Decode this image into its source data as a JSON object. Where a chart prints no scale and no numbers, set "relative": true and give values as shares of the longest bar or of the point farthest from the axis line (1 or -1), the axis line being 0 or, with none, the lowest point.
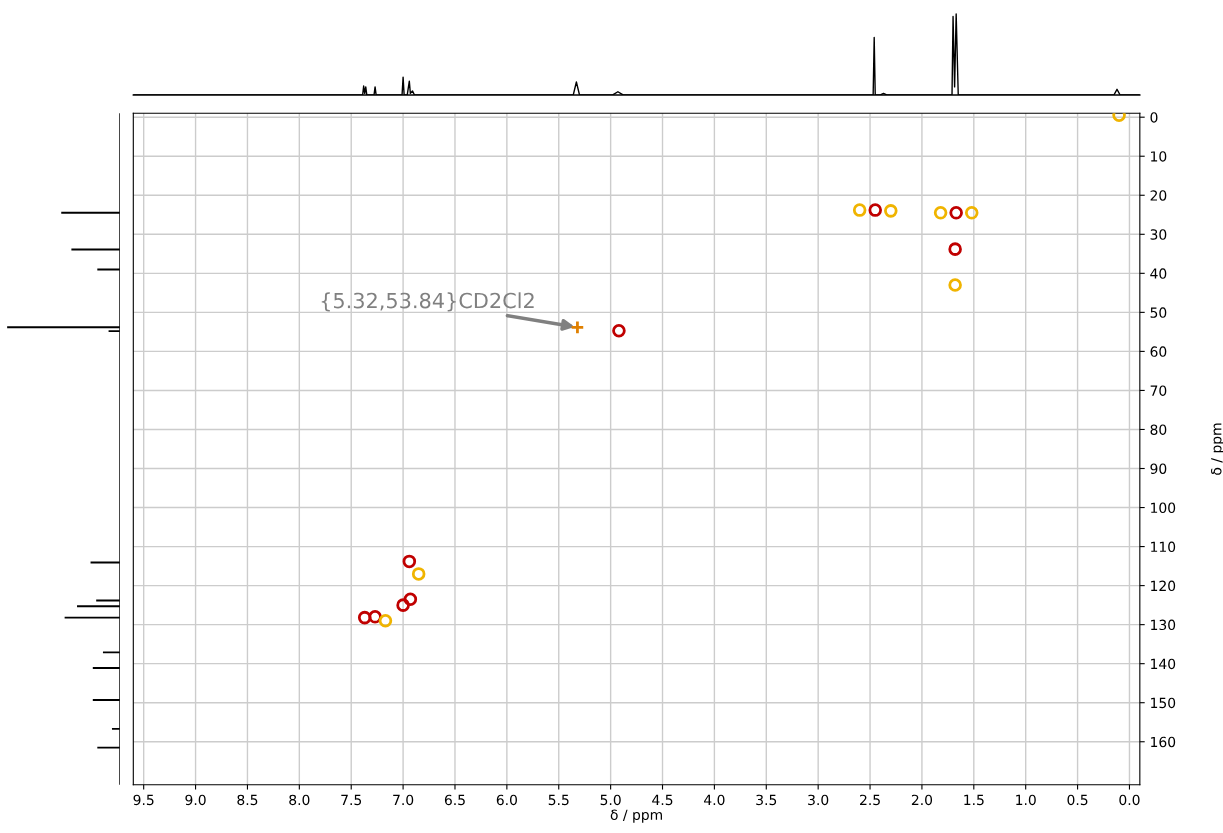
{
  "chart_data": [
    {
      "type": "line",
      "relative": true,
      "tick_labels": false,
      "xlim": [
        9.6,
        -0.1
      ],
      "series": [
        {
          "color": "#000000",
          "x": [
            9.6,
            7.42,
            7.39,
            7.38,
            7.37,
            7.36,
            7.35,
            7.3,
            7.28,
            7.27,
            7.26,
            7.05,
            7.01,
            7.0,
            6.99,
            6.96,
            6.94,
            6.93,
            6.91,
            6.89,
            5.36,
            5.33,
            5.3,
            4.98,
            4.93,
            4.88,
            2.5,
            2.47,
            2.46,
            2.45,
            2.4,
            2.37,
            2.34,
            1.74,
            1.71,
            1.7,
            1.685,
            1.67,
            1.65,
            1.62,
            0.15,
            0.12,
            0.09,
            -0.1
          ],
          "values": [
            0,
            0,
            0,
            0.11,
            0.02,
            0.1,
            0,
            0,
            0,
            0.1,
            0,
            0,
            0,
            0.22,
            0,
            0,
            0.17,
            0.02,
            0.05,
            0,
            0,
            0.16,
            0,
            0,
            0.04,
            0,
            0,
            0,
            0.71,
            0,
            0,
            0.02,
            0,
            0,
            0,
            0.97,
            0.1,
            1.0,
            0,
            0,
            0,
            0.07,
            0,
            0
          ]
        }
      ]
    },
    {
      "type": "scatter",
      "xlabel": "δ / ppm",
      "ylabel": "δ / ppm",
      "xlim": [
        9.6,
        -0.1
      ],
      "ylim": [
        171,
        -1
      ],
      "grid": true,
      "xticks": [
        {
          "value": 9.5,
          "label": "9.5"
        },
        {
          "value": 9,
          "label": "9.0"
        },
        {
          "value": 8.5,
          "label": "8.5"
        },
        {
          "value": 8,
          "label": "8.0"
        },
        {
          "value": 7.5,
          "label": "7.5"
        },
        {
          "value": 7,
          "label": "7.0"
        },
        {
          "value": 6.5,
          "label": "6.5"
        },
        {
          "value": 6,
          "label": "6.0"
        },
        {
          "value": 5.5,
          "label": "5.5"
        },
        {
          "value": 5,
          "label": "5.0"
        },
        {
          "value": 4.5,
          "label": "4.5"
        },
        {
          "value": 4,
          "label": "4.0"
        },
        {
          "value": 3.5,
          "label": "3.5"
        },
        {
          "value": 3,
          "label": "3.0"
        },
        {
          "value": 2.5,
          "label": "2.5"
        },
        {
          "value": 2,
          "label": "2.0"
        },
        {
          "value": 1.5,
          "label": "1.5"
        },
        {
          "value": 1,
          "label": "1.0"
        },
        {
          "value": 0.5,
          "label": "0.5"
        },
        {
          "value": 0,
          "label": "0.0"
        }
      ],
      "yticks": [
        0,
        10,
        20,
        30,
        40,
        50,
        60,
        70,
        80,
        90,
        100,
        110,
        120,
        130,
        140,
        150,
        160
      ],
      "series": [
        {
          "color": "#c00000",
          "marker": "circle",
          "x": [
            7.37,
            7.27,
            7.0,
            6.94,
            6.93,
            4.92,
            2.45,
            1.67,
            1.68
          ],
          "values": [
            128.2,
            128.0,
            125.0,
            113.8,
            123.5,
            54.7,
            23.8,
            24.5,
            33.8
          ]
        },
        {
          "color": "#f0b400",
          "marker": "circle",
          "x": [
            7.17,
            6.85,
            2.6,
            2.3,
            1.82,
            1.52,
            1.68,
            0.1
          ],
          "values": [
            129.0,
            117.0,
            23.8,
            24.0,
            24.5,
            24.5,
            43.0,
            -0.5
          ]
        },
        {
          "color": "#e08000",
          "marker": "cross",
          "x": [
            5.32
          ],
          "values": [
            53.84
          ]
        }
      ],
      "annotations": [
        {
          "text": "{5.32,53.84}CD2Cl2",
          "x": 5.32,
          "y": 53.84
        }
      ]
    },
    {
      "type": "bar",
      "orientation": "horizontal",
      "relative": true,
      "tick_labels": false,
      "ylim": [
        171,
        -1
      ],
      "color": "#000000",
      "x": [
        24.5,
        33.9,
        39.0,
        53.8,
        54.8,
        114.1,
        123.8,
        125.3,
        128.2,
        137.1,
        141.1,
        149.3,
        156.7,
        161.5
      ],
      "values": [
        0.52,
        0.43,
        0.2,
        1.0,
        0.1,
        0.26,
        0.21,
        0.38,
        0.49,
        0.15,
        0.24,
        0.24,
        0.07,
        0.2
      ]
    }
  ]
}
